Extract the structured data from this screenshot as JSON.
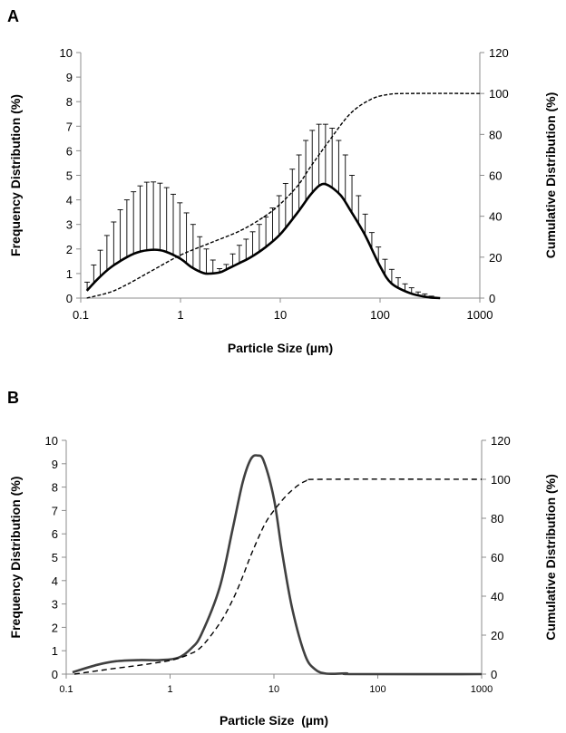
{
  "chart_data": [
    {
      "panel_label": "A",
      "type": "line",
      "xlabel": "Particle Size (µm)",
      "ylabel": "Frequency Distribution (%)",
      "y2label": "Cumulative Distribution (%)",
      "x_scale": "log",
      "xlim": [
        0.1,
        1000
      ],
      "ylim": [
        0,
        10
      ],
      "y2lim": [
        0,
        120
      ],
      "xticks": [
        "0.1",
        "1",
        "10",
        "100",
        "1000"
      ],
      "yticks": [
        "0",
        "1",
        "2",
        "3",
        "4",
        "5",
        "6",
        "7",
        "8",
        "9",
        "10"
      ],
      "y2ticks": [
        "0",
        "20",
        "40",
        "60",
        "80",
        "100",
        "120"
      ],
      "grid": false,
      "series": [
        {
          "style": "solid",
          "color": "#000000",
          "axis": "left",
          "x": [
            0.115,
            0.15,
            0.2,
            0.3,
            0.4,
            0.55,
            0.7,
            1,
            1.3,
            1.7,
            2,
            2.5,
            3,
            4,
            5,
            7,
            10,
            15,
            20,
            25,
            30,
            40,
            50,
            70,
            100,
            130,
            200,
            300,
            400
          ],
          "y": [
            0.3,
            0.8,
            1.25,
            1.7,
            1.9,
            1.97,
            1.9,
            1.6,
            1.25,
            1.02,
            1.0,
            1.05,
            1.2,
            1.45,
            1.65,
            2.05,
            2.6,
            3.5,
            4.2,
            4.6,
            4.6,
            4.2,
            3.6,
            2.6,
            1.3,
            0.6,
            0.2,
            0.04,
            0
          ]
        },
        {
          "style": "dashed",
          "color": "#000000",
          "axis": "right",
          "x": [
            0.115,
            0.2,
            0.3,
            0.5,
            1,
            2,
            4,
            7,
            10,
            15,
            20,
            30,
            50,
            80,
            120,
            200,
            1000
          ],
          "y": [
            0,
            3,
            7,
            13,
            21,
            27,
            33,
            40,
            46,
            55,
            64,
            76,
            90,
            97,
            99.5,
            100,
            100
          ]
        }
      ],
      "error_bars": {
        "x": [
          0.116,
          0.135,
          0.157,
          0.183,
          0.214,
          0.249,
          0.29,
          0.338,
          0.394,
          0.459,
          0.535,
          0.623,
          0.726,
          0.846,
          0.985,
          1.148,
          1.337,
          1.558,
          1.815,
          2.114,
          2.463,
          2.87,
          3.34,
          3.89,
          4.54,
          5.29,
          6.16,
          7.17,
          8.36,
          9.74,
          11.3,
          13.2,
          15.4,
          18.0,
          20.9,
          24.4,
          28.4,
          33.1,
          38.5,
          44.9,
          52.3,
          60.9,
          71.0,
          82.7,
          96.3,
          112,
          131,
          152,
          178,
          207,
          241,
          281,
          327
        ],
        "upper": [
          0.65,
          1.35,
          1.95,
          2.55,
          3.1,
          3.6,
          4.0,
          4.33,
          4.57,
          4.72,
          4.73,
          4.68,
          4.5,
          4.23,
          3.88,
          3.47,
          3.0,
          2.5,
          2.0,
          1.55,
          1.2,
          1.37,
          1.8,
          2.15,
          2.4,
          2.7,
          3.0,
          3.3,
          3.67,
          4.17,
          4.67,
          5.25,
          5.83,
          6.42,
          6.83,
          7.08,
          7.08,
          6.92,
          6.42,
          5.83,
          5.0,
          4.17,
          3.42,
          2.67,
          2.08,
          1.58,
          1.17,
          0.83,
          0.58,
          0.42,
          0.25,
          0.17,
          0.08
        ]
      }
    },
    {
      "panel_label": "B",
      "type": "line",
      "xlabel": "Particle Size  (µm)",
      "ylabel": "Frequency Distribution (%)",
      "y2label": "Cumulative Distribution (%)",
      "x_scale": "log",
      "xlim": [
        0.1,
        1000
      ],
      "ylim": [
        0,
        10
      ],
      "y2lim": [
        0,
        120
      ],
      "xticks": [
        "0.1",
        "1",
        "10",
        "100",
        "1000"
      ],
      "yticks": [
        "0",
        "1",
        "2",
        "3",
        "4",
        "5",
        "6",
        "7",
        "8",
        "9",
        "10"
      ],
      "y2ticks": [
        "0",
        "20",
        "40",
        "60",
        "80",
        "100",
        "120"
      ],
      "grid": false,
      "series": [
        {
          "style": "solid",
          "color": "#404040",
          "axis": "left",
          "x": [
            0.115,
            0.2,
            0.3,
            0.5,
            0.8,
            1.2,
            1.6,
            2,
            3,
            4,
            5,
            6,
            7,
            8,
            10,
            12,
            15,
            20,
            25,
            32,
            50,
            60,
            1000
          ],
          "y": [
            0.08,
            0.4,
            0.55,
            0.6,
            0.6,
            0.7,
            1.1,
            1.7,
            3.7,
            6.2,
            8.2,
            9.2,
            9.35,
            9.1,
            7.5,
            5.2,
            2.8,
            0.8,
            0.2,
            0.02,
            0.03,
            0,
            0
          ]
        },
        {
          "style": "dashed",
          "color": "#000000",
          "axis": "right",
          "x": [
            0.12,
            0.3,
            0.5,
            1,
            1.5,
            2,
            3,
            4,
            5,
            6,
            8,
            10,
            14,
            20,
            30,
            1000
          ],
          "y": [
            0,
            3,
            4.5,
            7,
            10,
            14,
            26,
            38,
            50,
            61,
            76,
            84,
            93,
            99,
            100,
            100
          ]
        }
      ]
    }
  ]
}
